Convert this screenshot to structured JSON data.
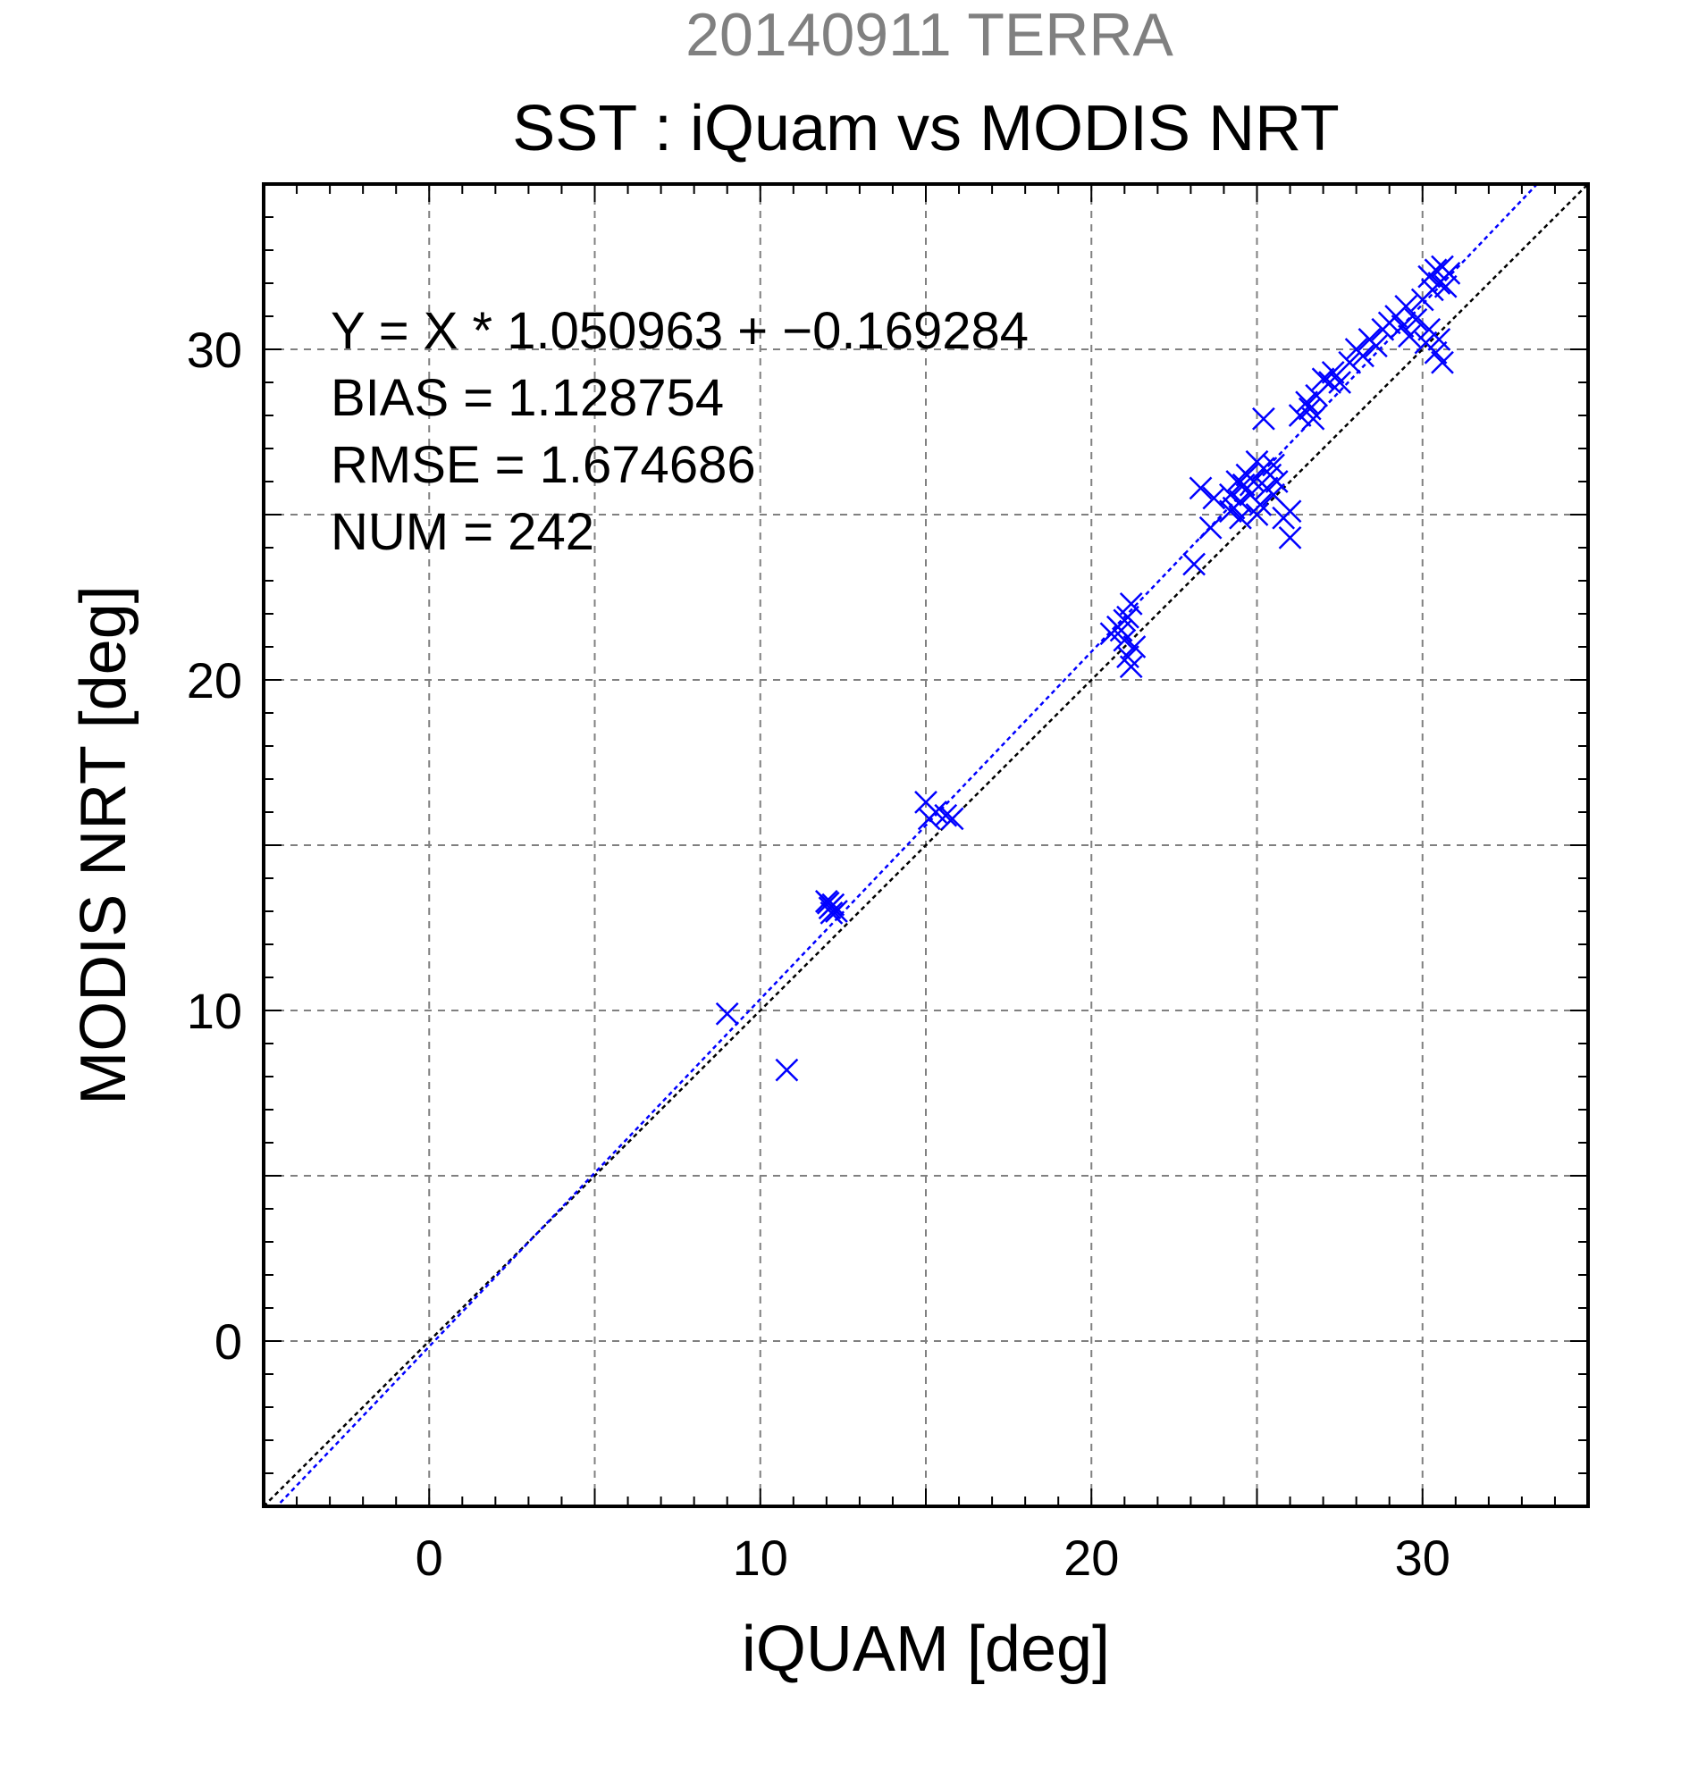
{
  "chart_data": {
    "type": "scatter",
    "supertitle": "20140911 TERRA",
    "title": "SST : iQuam vs MODIS NRT",
    "xlabel": "iQUAM [deg]",
    "ylabel": "MODIS NRT [deg]",
    "xlim": [
      -5,
      35
    ],
    "ylim": [
      -5,
      35
    ],
    "xticks": [
      0,
      10,
      20,
      30
    ],
    "yticks": [
      0,
      10,
      20,
      30
    ],
    "xtick_labels": [
      "0",
      "10",
      "20",
      "30"
    ],
    "ytick_labels": [
      "0",
      "10",
      "20",
      "30"
    ],
    "grid": true,
    "stats": {
      "equation": "Y = X * 1.050963 + −0.169284",
      "bias": "BIAS = 1.128754",
      "rmse": "RMSE = 1.674686",
      "num": "NUM = 242"
    },
    "regression": {
      "slope": 1.050963,
      "intercept": -0.169284
    },
    "lines": [
      {
        "kind": "one-to-one",
        "color": "#000000",
        "x": [
          -5,
          35
        ],
        "y": [
          -5,
          35
        ]
      },
      {
        "kind": "regression",
        "color": "#0000ff",
        "x": [
          -5,
          33.5
        ],
        "y": [
          -5.42,
          35.04
        ]
      }
    ],
    "series": [
      {
        "marker": "x",
        "color": "#0000ff",
        "points": [
          [
            9.0,
            9.9
          ],
          [
            10.8,
            8.2
          ],
          [
            12.0,
            13.3
          ],
          [
            12.1,
            13.1
          ],
          [
            12.2,
            13.2
          ],
          [
            12.3,
            13.0
          ],
          [
            12.15,
            12.95
          ],
          [
            12.05,
            13.25
          ],
          [
            15.0,
            16.3
          ],
          [
            15.1,
            15.8
          ],
          [
            15.3,
            16.0
          ],
          [
            15.6,
            15.9
          ],
          [
            15.8,
            15.8
          ],
          [
            20.6,
            21.4
          ],
          [
            20.8,
            21.6
          ],
          [
            21.0,
            21.2
          ],
          [
            21.1,
            21.9
          ],
          [
            21.2,
            22.3
          ],
          [
            21.3,
            21.0
          ],
          [
            21.1,
            20.7
          ],
          [
            21.2,
            20.4
          ],
          [
            21.0,
            21.8
          ],
          [
            20.9,
            21.5
          ],
          [
            23.1,
            23.5
          ],
          [
            23.3,
            25.8
          ],
          [
            23.6,
            24.6
          ],
          [
            23.7,
            25.5
          ],
          [
            24.2,
            25.6
          ],
          [
            24.3,
            25.2
          ],
          [
            24.4,
            26.0
          ],
          [
            24.5,
            25.4
          ],
          [
            24.6,
            25.9
          ],
          [
            24.7,
            26.2
          ],
          [
            24.8,
            25.6
          ],
          [
            24.9,
            26.0
          ],
          [
            25.0,
            26.6
          ],
          [
            25.1,
            25.3
          ],
          [
            25.2,
            26.4
          ],
          [
            25.3,
            25.8
          ],
          [
            25.4,
            26.2
          ],
          [
            25.5,
            25.6
          ],
          [
            25.6,
            26.0
          ],
          [
            24.2,
            25.1
          ],
          [
            24.5,
            24.9
          ],
          [
            25.0,
            25.0
          ],
          [
            25.2,
            27.9
          ],
          [
            25.5,
            26.5
          ],
          [
            26.0,
            25.1
          ],
          [
            26.0,
            24.3
          ],
          [
            25.8,
            24.9
          ],
          [
            26.3,
            28.0
          ],
          [
            26.5,
            28.4
          ],
          [
            26.7,
            27.9
          ],
          [
            26.6,
            28.2
          ],
          [
            26.8,
            28.6
          ],
          [
            27.0,
            29.1
          ],
          [
            27.2,
            29.0
          ],
          [
            27.3,
            29.3
          ],
          [
            27.5,
            29.0
          ],
          [
            27.8,
            29.6
          ],
          [
            28.0,
            30.0
          ],
          [
            28.2,
            29.8
          ],
          [
            28.4,
            30.3
          ],
          [
            28.6,
            30.1
          ],
          [
            28.8,
            30.6
          ],
          [
            29.0,
            30.8
          ],
          [
            29.2,
            31.0
          ],
          [
            29.4,
            30.7
          ],
          [
            29.5,
            31.3
          ],
          [
            29.6,
            30.4
          ],
          [
            29.8,
            30.9
          ],
          [
            30.0,
            31.5
          ],
          [
            30.1,
            30.2
          ],
          [
            30.2,
            32.2
          ],
          [
            30.3,
            31.8
          ],
          [
            30.4,
            32.4
          ],
          [
            30.5,
            32.0
          ],
          [
            30.6,
            32.5
          ],
          [
            30.7,
            31.9
          ],
          [
            30.8,
            32.3
          ],
          [
            30.5,
            30.3
          ],
          [
            30.6,
            29.6
          ],
          [
            30.4,
            29.9
          ],
          [
            30.2,
            30.6
          ]
        ]
      }
    ]
  }
}
